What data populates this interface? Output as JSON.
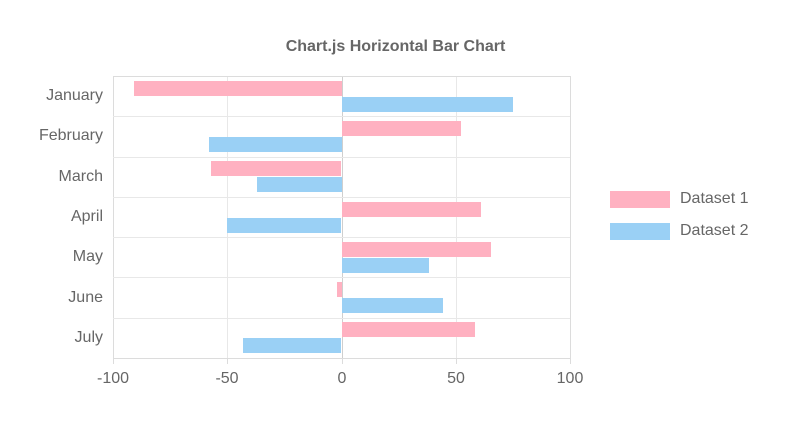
{
  "title": "Chart.js Horizontal Bar Chart",
  "chart_data": {
    "type": "bar",
    "orientation": "horizontal",
    "title": "Chart.js Horizontal Bar Chart",
    "categories": [
      "January",
      "February",
      "March",
      "April",
      "May",
      "June",
      "July"
    ],
    "series": [
      {
        "name": "Dataset 1",
        "color": "#FFB1C1",
        "values": [
          -91,
          52,
          -57,
          61,
          65,
          -2,
          58
        ]
      },
      {
        "name": "Dataset 2",
        "color": "#9AD0F5",
        "values": [
          75,
          -58,
          -37,
          -50,
          38,
          44,
          -43
        ]
      }
    ],
    "xlim": [
      -100,
      100
    ],
    "x_ticks": [
      -100,
      -50,
      0,
      50,
      100
    ],
    "grid": true,
    "legend_position": "right"
  },
  "legend": {
    "items": [
      {
        "label": "Dataset 1",
        "color": "#FFB1C1"
      },
      {
        "label": "Dataset 2",
        "color": "#9AD0F5"
      }
    ]
  },
  "colors": {
    "background": "#ffffff",
    "text": "#666666",
    "grid": "#e8e8e8",
    "border": "#dcdcdc",
    "zero_line": "#cfcfcf"
  }
}
